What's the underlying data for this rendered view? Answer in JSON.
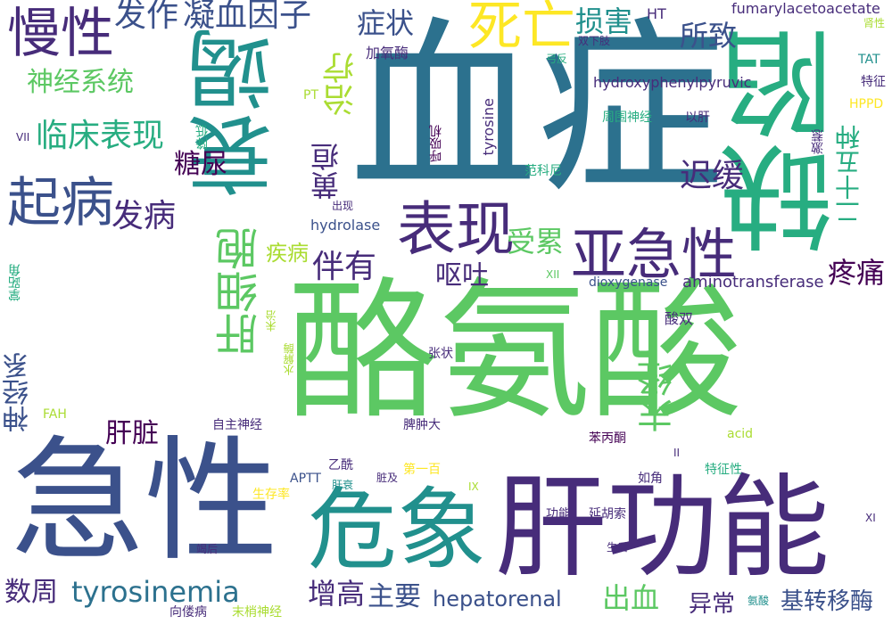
{
  "palette": {
    "dark_purple": "#440154",
    "indigo": "#472c7a",
    "slate_blue": "#3b518b",
    "steel_blue": "#2c718e",
    "teal": "#21908d",
    "green_teal": "#27ad81",
    "green": "#5cc863",
    "lime": "#aadc32",
    "yellow": "#fde725"
  },
  "words": [
    {
      "text": "血症",
      "color": "#2c718e"
    },
    {
      "text": "酪氨酸",
      "color": "#5cc863"
    },
    {
      "text": "急性",
      "color": "#3b518b"
    },
    {
      "text": "肝功能",
      "color": "#472c7a"
    },
    {
      "text": "衰竭",
      "color": "#21908d"
    },
    {
      "text": "缺陷",
      "color": "#27ad81"
    },
    {
      "text": "危象",
      "color": "#21908d"
    },
    {
      "text": "表现",
      "color": "#472c7a"
    },
    {
      "text": "亚急性",
      "color": "#472c7a"
    },
    {
      "text": "死亡",
      "color": "#fde725"
    },
    {
      "text": "慢性",
      "color": "#472c7a"
    },
    {
      "text": "起病",
      "color": "#3b518b"
    },
    {
      "text": "肝细胞",
      "color": "#5cc863"
    },
    {
      "text": "临床表现",
      "color": "#27ad81"
    },
    {
      "text": "神经系统",
      "color": "#5cc863"
    },
    {
      "text": "凝血因子",
      "color": "#3b518b"
    },
    {
      "text": "发作",
      "color": "#3b518b"
    },
    {
      "text": "损害",
      "color": "#21908d"
    },
    {
      "text": "所致",
      "color": "#3b518b"
    },
    {
      "text": "症状",
      "color": "#3b518b"
    },
    {
      "text": "治疗",
      "color": "#aadc32"
    },
    {
      "text": "黄疸",
      "color": "#472c7a"
    },
    {
      "text": "糖尿",
      "color": "#440154"
    },
    {
      "text": "迟缓",
      "color": "#472c7a"
    },
    {
      "text": "发病",
      "color": "#472c7a"
    },
    {
      "text": "受累",
      "color": "#5cc863"
    },
    {
      "text": "伴有",
      "color": "#472c7a"
    },
    {
      "text": "呕吐",
      "color": "#472c7a"
    },
    {
      "text": "疾病",
      "color": "#aadc32"
    },
    {
      "text": "疼痛",
      "color": "#440154"
    },
    {
      "text": "末经",
      "color": "#5cc863"
    },
    {
      "text": "神经系",
      "color": "#3b518b"
    },
    {
      "text": "肝脏",
      "color": "#440154"
    },
    {
      "text": "tyrosinemia",
      "color": "#2c718e"
    },
    {
      "text": "数周",
      "color": "#472c7a"
    },
    {
      "text": "增高",
      "color": "#472c7a"
    },
    {
      "text": "主要",
      "color": "#3b518b"
    },
    {
      "text": "hepatorenal",
      "color": "#3b518b"
    },
    {
      "text": "出血",
      "color": "#5cc863"
    },
    {
      "text": "异常",
      "color": "#472c7a"
    },
    {
      "text": "基转移酶",
      "color": "#3b518b"
    },
    {
      "text": "二十五种",
      "color": "#27ad81"
    },
    {
      "text": "fumarylacetoacetate",
      "color": "#472c7a"
    },
    {
      "text": "HT",
      "color": "#472c7a"
    },
    {
      "text": "加氧酶",
      "color": "#472c7a"
    },
    {
      "text": "双下肢",
      "color": "#472c7a"
    },
    {
      "text": "弓反",
      "color": "#27ad81"
    },
    {
      "text": "肾性",
      "color": "#aadc32"
    },
    {
      "text": "TAT",
      "color": "#21908d"
    },
    {
      "text": "特征",
      "color": "#472c7a"
    },
    {
      "text": "hydroxyphenylpyruvic",
      "color": "#472c7a"
    },
    {
      "text": "HPPD",
      "color": "#fde725"
    },
    {
      "text": "tyrosine",
      "color": "#472c7a"
    },
    {
      "text": "周围神经",
      "color": "#27ad81"
    },
    {
      "text": "以肝",
      "color": "#472c7a"
    },
    {
      "text": "呼吸机",
      "color": "#440154"
    },
    {
      "text": "激惹",
      "color": "#472c7a"
    },
    {
      "text": "范科尼",
      "color": "#27ad81"
    },
    {
      "text": "PT",
      "color": "#aadc32"
    },
    {
      "text": "降低",
      "color": "#27ad81"
    },
    {
      "text": "VII",
      "color": "#472c7a"
    },
    {
      "text": "出现",
      "color": "#472c7a"
    },
    {
      "text": "hydrolase",
      "color": "#3b518b"
    },
    {
      "text": "XII",
      "color": "#5cc863"
    },
    {
      "text": "dioxygenase",
      "color": "#3b518b"
    },
    {
      "text": "aminotransferase",
      "color": "#472c7a"
    },
    {
      "text": "掌跖角",
      "color": "#27ad81"
    },
    {
      "text": "未治",
      "color": "#aadc32"
    },
    {
      "text": "水解酶",
      "color": "#aadc32"
    },
    {
      "text": "酸双",
      "color": "#472c7a"
    },
    {
      "text": "张状",
      "color": "#472c7a"
    },
    {
      "text": "FAH",
      "color": "#aadc32"
    },
    {
      "text": "自主神经",
      "color": "#472c7a"
    },
    {
      "text": "脾肿大",
      "color": "#472c7a"
    },
    {
      "text": "苯丙酮",
      "color": "#440154"
    },
    {
      "text": "acid",
      "color": "#aadc32"
    },
    {
      "text": "II",
      "color": "#472c7a"
    },
    {
      "text": "乙酰",
      "color": "#472c7a"
    },
    {
      "text": "APTT",
      "color": "#3b518b"
    },
    {
      "text": "脏及",
      "color": "#472c7a"
    },
    {
      "text": "第一百",
      "color": "#fde725"
    },
    {
      "text": "如角",
      "color": "#472c7a"
    },
    {
      "text": "特征性",
      "color": "#27ad81"
    },
    {
      "text": "肝衰",
      "color": "#21908d"
    },
    {
      "text": "IX",
      "color": "#aadc32"
    },
    {
      "text": "生存率",
      "color": "#fde725"
    },
    {
      "text": "功能",
      "color": "#472c7a"
    },
    {
      "text": "延胡索",
      "color": "#472c7a"
    },
    {
      "text": "XI",
      "color": "#472c7a"
    },
    {
      "text": "竭后",
      "color": "#472c7a"
    },
    {
      "text": "生后",
      "color": "#472c7a"
    },
    {
      "text": "向偻病",
      "color": "#472c7a"
    },
    {
      "text": "末梢神经",
      "color": "#aadc32"
    },
    {
      "text": "氨酸",
      "color": "#21908d"
    }
  ]
}
